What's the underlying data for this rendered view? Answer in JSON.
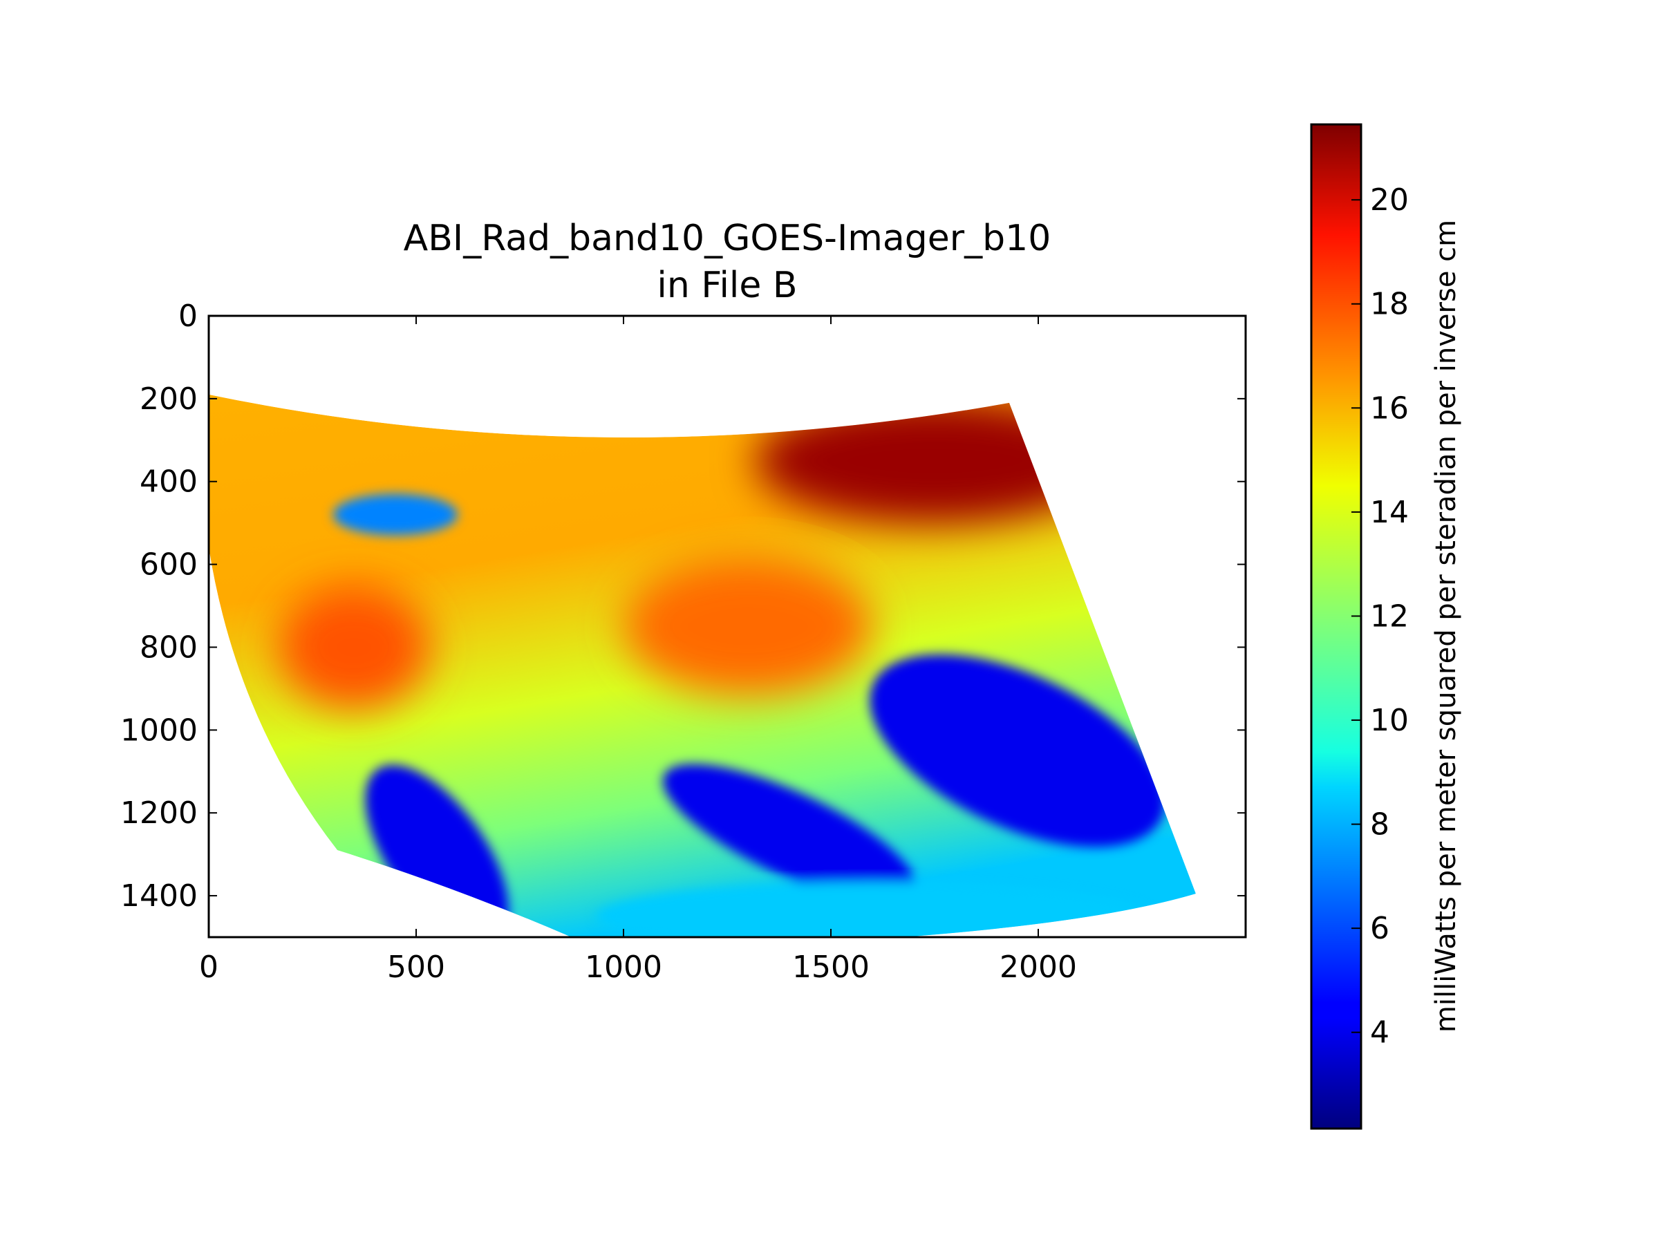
{
  "chart_data": {
    "type": "heatmap",
    "title": "ABI_Rad_band10_GOES-Imager_b10",
    "subtitle": "in File B",
    "xlabel": "",
    "ylabel": "",
    "xlim": [
      0,
      2500
    ],
    "ylim": [
      1500,
      0
    ],
    "x_ticks": [
      0,
      500,
      1000,
      1500,
      2000
    ],
    "x_tick_labels": [
      "0",
      "500",
      "1000",
      "1500",
      "2000"
    ],
    "y_ticks": [
      0,
      200,
      400,
      600,
      800,
      1000,
      1200,
      1400
    ],
    "y_tick_labels": [
      "0",
      "200",
      "400",
      "600",
      "800",
      "1000",
      "1200",
      "1400"
    ],
    "colormap": "jet",
    "colorbar": {
      "label": "milliWatts per meter squared per steradian per inverse cm",
      "range": [
        2.15,
        21.45
      ],
      "ticks": [
        4,
        6,
        8,
        10,
        12,
        14,
        16,
        18,
        20
      ],
      "tick_labels": [
        "4",
        "6",
        "8",
        "10",
        "12",
        "14",
        "16",
        "18",
        "20"
      ]
    },
    "swath_outline": [
      [
        0,
        190
      ],
      [
        500,
        300
      ],
      [
        950,
        345
      ],
      [
        1500,
        300
      ],
      [
        1930,
        210
      ],
      [
        2380,
        1395
      ],
      [
        2000,
        1500
      ],
      [
        950,
        1500
      ],
      [
        310,
        1290
      ],
      [
        0,
        560
      ]
    ],
    "regions": [
      {
        "name": "warm-northeast",
        "center": [
          1750,
          350
        ],
        "value": 21
      },
      {
        "name": "warm-west",
        "center": [
          350,
          800
        ],
        "value": 18
      },
      {
        "name": "warm-central",
        "center": [
          1300,
          750
        ],
        "value": 17.5
      },
      {
        "name": "cloud-east",
        "center": [
          1950,
          1050
        ],
        "value": 4
      },
      {
        "name": "cloud-south-central",
        "center": [
          1400,
          1250
        ],
        "value": 4
      },
      {
        "name": "cloud-southwest",
        "center": [
          550,
          1300
        ],
        "value": 4
      },
      {
        "name": "cloud-northwest",
        "center": [
          450,
          480
        ],
        "value": 7
      },
      {
        "name": "cool-south-edge",
        "center": [
          1600,
          1450
        ],
        "value": 8.5
      }
    ]
  }
}
